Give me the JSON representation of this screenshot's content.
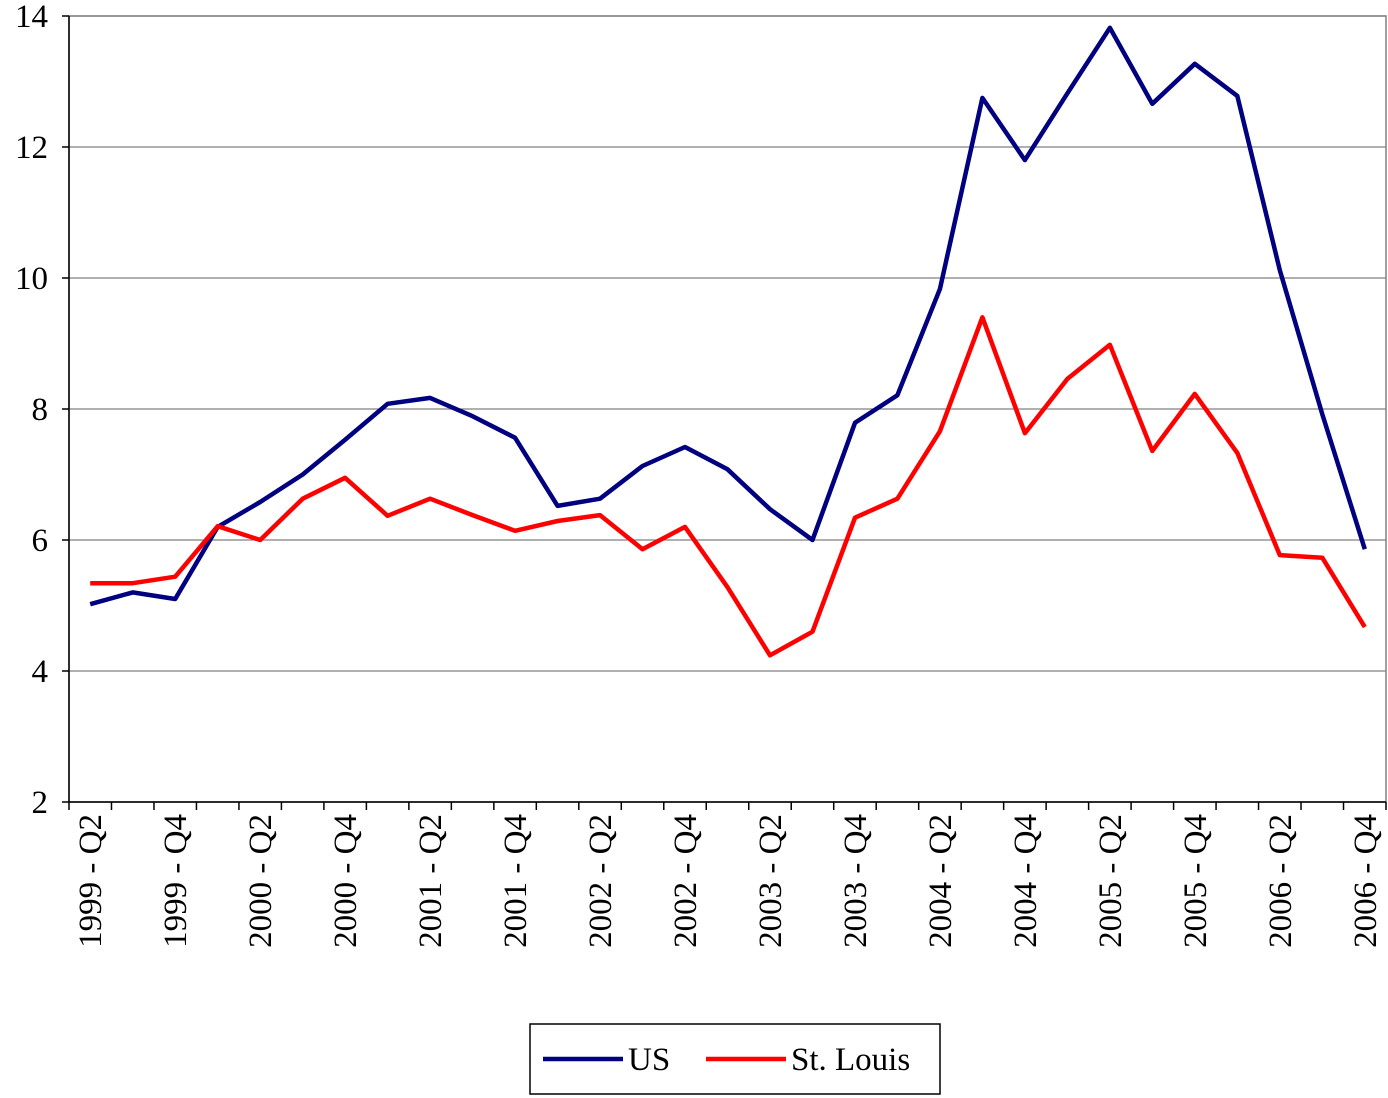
{
  "chart_data": {
    "type": "line",
    "categories": [
      "1999 - Q2",
      null,
      "1999 - Q4",
      null,
      "2000 - Q2",
      null,
      "2000 - Q4",
      null,
      "2001 - Q2",
      null,
      "2001 - Q4",
      null,
      "2002 - Q2",
      null,
      "2002 - Q4",
      null,
      "2003 - Q2",
      null,
      "2003 - Q4",
      null,
      "2004 - Q2",
      null,
      "2004 - Q4",
      null,
      "2005 - Q2",
      null,
      "2005 - Q4",
      null,
      "2006 - Q2",
      null,
      "2006 - Q4"
    ],
    "series": [
      {
        "name": "US",
        "color": "#000080",
        "values": [
          5.02,
          5.2,
          5.1,
          6.2,
          6.58,
          7.0,
          7.53,
          8.08,
          8.17,
          7.89,
          7.56,
          6.52,
          6.63,
          7.13,
          7.42,
          7.08,
          6.47,
          6.0,
          7.79,
          8.21,
          9.83,
          12.75,
          11.8,
          12.82,
          13.82,
          12.66,
          13.27,
          12.78,
          10.12,
          7.92,
          5.86
        ]
      },
      {
        "name": "St. Louis",
        "color": "#ff0000",
        "values": [
          5.34,
          5.34,
          5.44,
          6.21,
          6.0,
          6.63,
          6.95,
          6.37,
          6.63,
          6.38,
          6.14,
          6.29,
          6.38,
          5.86,
          6.2,
          5.28,
          4.24,
          4.6,
          6.34,
          6.63,
          7.66,
          9.4,
          7.63,
          8.46,
          8.98,
          7.36,
          8.23,
          7.33,
          5.77,
          5.73,
          4.67
        ]
      }
    ],
    "ylim": [
      2,
      14
    ],
    "yticks": [
      2,
      4,
      6,
      8,
      10,
      12,
      14
    ],
    "grid": true,
    "legend": "bottom"
  }
}
